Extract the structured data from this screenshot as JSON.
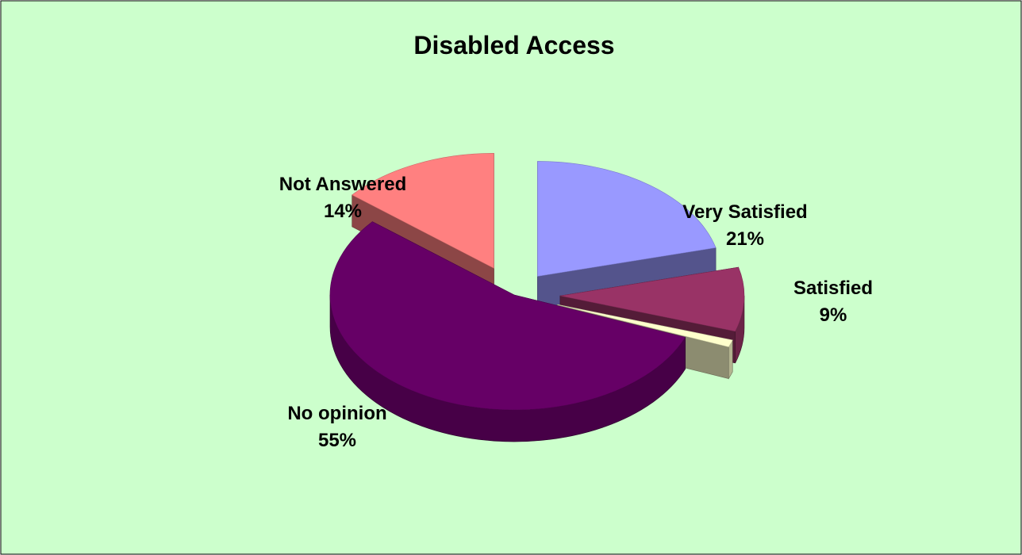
{
  "chart_data": {
    "type": "pie",
    "title": "Disabled Access",
    "three_d": true,
    "exploded": true,
    "legend": "none",
    "background_color": "#ccffcc",
    "slices": [
      {
        "label": "Very Satisfied",
        "percent_label": "21%",
        "value": 21,
        "color": "#9999ff"
      },
      {
        "label": "Satisfied",
        "percent_label": "9%",
        "value": 9,
        "color": "#993366"
      },
      {
        "label": "",
        "percent_label": "",
        "value": 1,
        "color": "#ffffcc"
      },
      {
        "label": "No opinion",
        "percent_label": "55%",
        "value": 55,
        "color": "#660066"
      },
      {
        "label": "Not Answered",
        "percent_label": "14%",
        "value": 14,
        "color": "#ff8080"
      }
    ]
  }
}
